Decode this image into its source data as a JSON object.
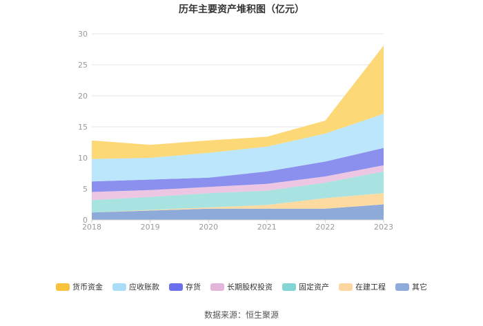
{
  "chart_data": {
    "type": "area",
    "title": "历年主要资产堆积图（亿元）",
    "categories": [
      "2018",
      "2019",
      "2020",
      "2021",
      "2022",
      "2023"
    ],
    "ylim": [
      0,
      30
    ],
    "yticks": [
      "0",
      "5",
      "10",
      "15",
      "20",
      "25",
      "30"
    ],
    "series": [
      {
        "name": "其它",
        "color": "#8eaad9",
        "values": [
          1.2,
          1.5,
          1.8,
          1.8,
          1.8,
          2.5
        ]
      },
      {
        "name": "在建工程",
        "color": "#fddba0",
        "values": [
          0.0,
          0.1,
          0.2,
          0.6,
          1.7,
          1.8
        ]
      },
      {
        "name": "固定资产",
        "color": "#a8e2e1",
        "values": [
          2.0,
          2.1,
          2.3,
          2.3,
          2.5,
          3.5
        ]
      },
      {
        "name": "长期股权投资",
        "color": "#ecc6e3",
        "values": [
          1.3,
          1.1,
          1.0,
          1.1,
          1.0,
          1.0
        ]
      },
      {
        "name": "存货",
        "color": "#8b90ee",
        "values": [
          1.7,
          1.7,
          1.5,
          2.0,
          2.4,
          2.8
        ]
      },
      {
        "name": "应收账款",
        "color": "#bce6fb",
        "values": [
          3.6,
          3.5,
          4.0,
          4.0,
          4.5,
          5.5
        ]
      },
      {
        "name": "货币资金",
        "color": "#fdd877",
        "values": [
          3.0,
          2.1,
          2.0,
          1.6,
          2.1,
          11.0
        ]
      }
    ],
    "legend_order": [
      "货币资金",
      "应收账款",
      "存货",
      "长期股权投资",
      "固定资产",
      "在建工程",
      "其它"
    ],
    "legend_colors": {
      "货币资金": "#f8c23c",
      "应收账款": "#a9ddf8",
      "存货": "#6d70ec",
      "长期股权投资": "#e3b5db",
      "固定资产": "#84d6d5",
      "在建工程": "#fcd8a0",
      "其它": "#8fabdb"
    },
    "legend_position": "bottom"
  },
  "footer": {
    "source": "数据来源：恒生聚源"
  }
}
